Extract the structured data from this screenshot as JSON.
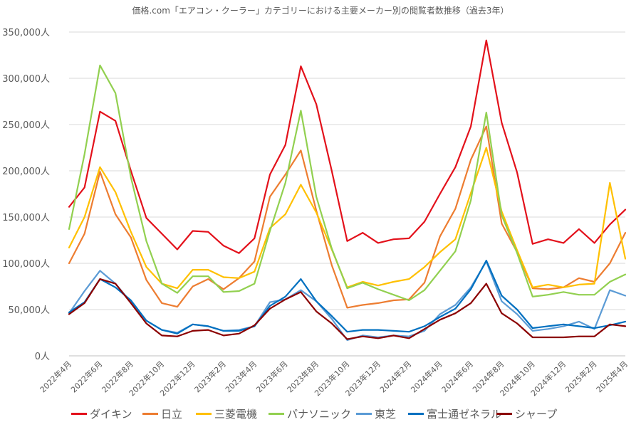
{
  "chart_data": {
    "type": "line",
    "title": "価格.com「エアコン・クーラー」カテゴリーにおける主要メーカー別の閲覧者数推移（過去3年）",
    "xlabel": "",
    "ylabel": "",
    "ylim": [
      0,
      350000
    ],
    "y_ticks": [
      "0人",
      "50,000人",
      "100,000人",
      "150,000人",
      "200,000人",
      "250,000人",
      "300,000人",
      "350,000人"
    ],
    "grid": "horizontal",
    "legend_position": "bottom",
    "x": [
      "2022年4月",
      "2022年5月",
      "2022年6月",
      "2022年7月",
      "2022年8月",
      "2022年9月",
      "2022年10月",
      "2022年11月",
      "2022年12月",
      "2023年1月",
      "2023年2月",
      "2023年3月",
      "2023年4月",
      "2023年5月",
      "2023年6月",
      "2023年7月",
      "2023年8月",
      "2023年9月",
      "2023年10月",
      "2023年11月",
      "2023年12月",
      "2024年1月",
      "2024年2月",
      "2024年3月",
      "2024年4月",
      "2024年5月",
      "2024年6月",
      "2024年7月",
      "2024年8月",
      "2024年9月",
      "2024年10月",
      "2024年11月",
      "2024年12月",
      "2025年1月",
      "2025年2月",
      "2025年3月",
      "2025年4月"
    ],
    "x_ticks": [
      "2022年4月",
      "2022年6月",
      "2022年8月",
      "2022年10月",
      "2022年12月",
      "2023年2月",
      "2023年4月",
      "2023年6月",
      "2023年8月",
      "2023年10月",
      "2023年12月",
      "2024年2月",
      "2024年4月",
      "2024年6月",
      "2024年8月",
      "2024年10月",
      "2024年12月",
      "2025年2月",
      "2025年4月"
    ],
    "series": [
      {
        "name": "ダイキン",
        "color": "#e3111b",
        "values": [
          161000,
          182000,
          264000,
          254000,
          200000,
          149000,
          132000,
          115000,
          135000,
          134000,
          119000,
          111000,
          127000,
          196000,
          228000,
          313000,
          272000,
          200000,
          124000,
          133000,
          122000,
          126000,
          127000,
          145000,
          175000,
          204000,
          248000,
          341000,
          252000,
          198000,
          121000,
          126000,
          122000,
          137000,
          122000,
          142000,
          158000
        ]
      },
      {
        "name": "日立",
        "color": "#ed7d31",
        "values": [
          100000,
          132000,
          199000,
          153000,
          128000,
          82000,
          57000,
          53000,
          75000,
          83000,
          72000,
          84000,
          102000,
          172000,
          196000,
          222000,
          157000,
          98000,
          52000,
          55000,
          57000,
          60000,
          61000,
          79000,
          129000,
          159000,
          212000,
          248000,
          143000,
          112000,
          73000,
          72000,
          74000,
          84000,
          80000,
          100000,
          133000
        ]
      },
      {
        "name": "三菱電機",
        "color": "#ffc000",
        "values": [
          117000,
          150000,
          204000,
          177000,
          134000,
          96000,
          78000,
          73000,
          93000,
          93000,
          85000,
          84000,
          91000,
          138000,
          153000,
          185000,
          155000,
          115000,
          74000,
          80000,
          76000,
          80000,
          83000,
          96000,
          112000,
          126000,
          176000,
          225000,
          156000,
          114000,
          74000,
          77000,
          74000,
          77000,
          78000,
          187000,
          105000
        ]
      },
      {
        "name": "パナソニック",
        "color": "#92d050",
        "values": [
          137000,
          218000,
          314000,
          284000,
          193000,
          124000,
          78000,
          68000,
          86000,
          86000,
          69000,
          70000,
          78000,
          135000,
          187000,
          265000,
          172000,
          116000,
          73000,
          79000,
          72000,
          66000,
          60000,
          71000,
          92000,
          113000,
          168000,
          263000,
          152000,
          111000,
          64000,
          66000,
          69000,
          66000,
          66000,
          80000,
          88000
        ]
      },
      {
        "name": "東芝",
        "color": "#5b9bd5",
        "values": [
          46000,
          70000,
          92000,
          78000,
          58000,
          38000,
          28000,
          25000,
          34000,
          32000,
          27000,
          28000,
          32000,
          58000,
          61000,
          71000,
          59000,
          40000,
          17000,
          22000,
          20000,
          22000,
          21000,
          27000,
          45000,
          55000,
          74000,
          102000,
          59000,
          45000,
          27000,
          29000,
          32000,
          37000,
          29000,
          71000,
          65000
        ]
      },
      {
        "name": "富士通ゼネラル",
        "color": "#0070c0",
        "values": [
          47000,
          58000,
          83000,
          74000,
          60000,
          38000,
          28000,
          24000,
          34000,
          32000,
          27000,
          27000,
          32000,
          54000,
          64000,
          83000,
          59000,
          43000,
          26000,
          28000,
          28000,
          27000,
          26000,
          32000,
          42000,
          51000,
          72000,
          103000,
          65000,
          50000,
          30000,
          32000,
          34000,
          32000,
          30000,
          33000,
          37000
        ]
      },
      {
        "name": "シャープ",
        "color": "#8b0000",
        "values": [
          45000,
          57000,
          83000,
          78000,
          57000,
          35000,
          22000,
          21000,
          27000,
          28000,
          22000,
          24000,
          33000,
          51000,
          61000,
          69000,
          48000,
          35000,
          18000,
          21000,
          19000,
          22000,
          19000,
          29000,
          39000,
          46000,
          57000,
          78000,
          46000,
          35000,
          20000,
          20000,
          20000,
          21000,
          21000,
          34000,
          32000
        ]
      }
    ]
  }
}
